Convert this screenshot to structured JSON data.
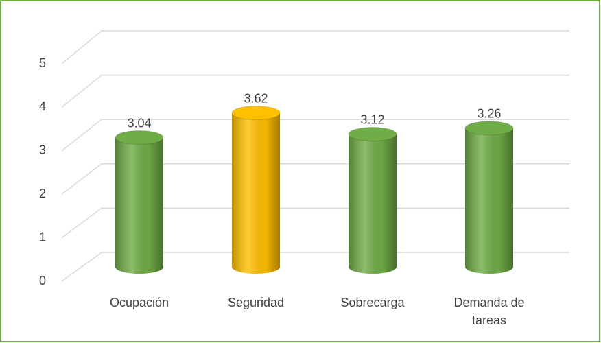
{
  "chart_data": {
    "type": "bar3d",
    "categories": [
      "Ocupación",
      "Seguridad",
      "Sobrecarga",
      "Demanda de tareas"
    ],
    "values": [
      3.04,
      3.62,
      3.12,
      3.26
    ],
    "colors": [
      "#70ad47",
      "#ffc000",
      "#70ad47",
      "#70ad47"
    ],
    "ylim": [
      0,
      5
    ],
    "yticks": [
      0,
      1,
      2,
      3,
      4,
      5
    ],
    "grid": true
  }
}
